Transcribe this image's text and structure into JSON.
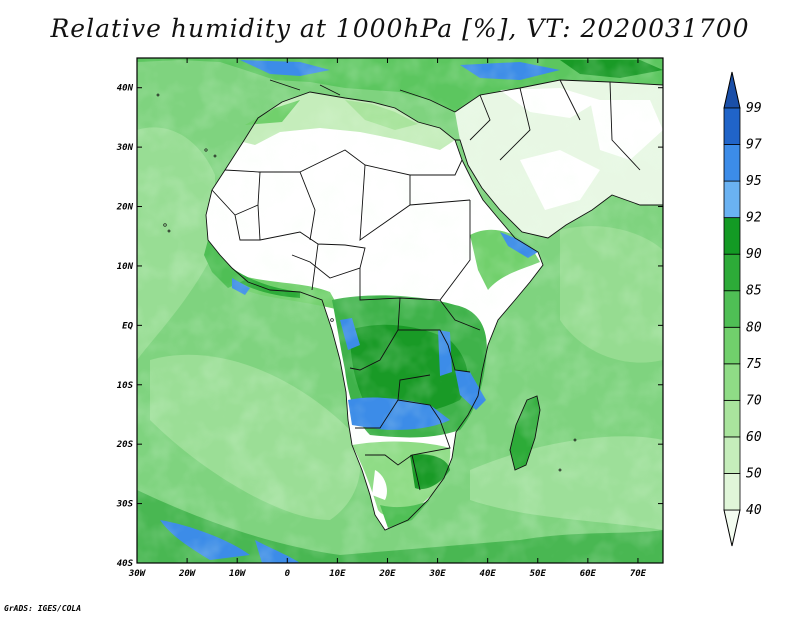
{
  "title": "Relative humidity at 1000hPa [%], VT: 2020031700",
  "credit": "GrADS: IGES/COLA",
  "map": {
    "lon_range": [
      -30,
      75
    ],
    "lat_range": [
      -40,
      45
    ],
    "lon_ticks": [
      {
        "value": -30,
        "label": "30W"
      },
      {
        "value": -20,
        "label": "20W"
      },
      {
        "value": -10,
        "label": "10W"
      },
      {
        "value": 0,
        "label": "0"
      },
      {
        "value": 10,
        "label": "10E"
      },
      {
        "value": 20,
        "label": "20E"
      },
      {
        "value": 30,
        "label": "30E"
      },
      {
        "value": 40,
        "label": "40E"
      },
      {
        "value": 50,
        "label": "50E"
      },
      {
        "value": 60,
        "label": "60E"
      },
      {
        "value": 70,
        "label": "70E"
      }
    ],
    "lat_ticks": [
      {
        "value": 40,
        "label": "40N"
      },
      {
        "value": 30,
        "label": "30N"
      },
      {
        "value": 20,
        "label": "20N"
      },
      {
        "value": 10,
        "label": "10N"
      },
      {
        "value": 0,
        "label": "EQ"
      },
      {
        "value": -10,
        "label": "10S"
      },
      {
        "value": -20,
        "label": "20S"
      },
      {
        "value": -30,
        "label": "30S"
      },
      {
        "value": -40,
        "label": "40S"
      }
    ],
    "ocean_color": "#7fd37f",
    "land_colors": {
      "dry": "#ffffff",
      "semi_dry": "#e6f7e2",
      "moist": "#4fbf55",
      "wet": "#199a26",
      "saturated": "#3c8ce8"
    }
  },
  "colorbar": {
    "levels": [
      "40",
      "50",
      "60",
      "70",
      "75",
      "80",
      "85",
      "90",
      "92",
      "95",
      "97",
      "99"
    ],
    "colors": [
      "#f3fcf0",
      "#e0f6d9",
      "#c5edbb",
      "#a9e49d",
      "#8fdc86",
      "#71d06c",
      "#4fbf55",
      "#2dab38",
      "#139a24",
      "#6ab2f2",
      "#3c8ce8",
      "#2064c8",
      "#1a4fa8"
    ]
  }
}
